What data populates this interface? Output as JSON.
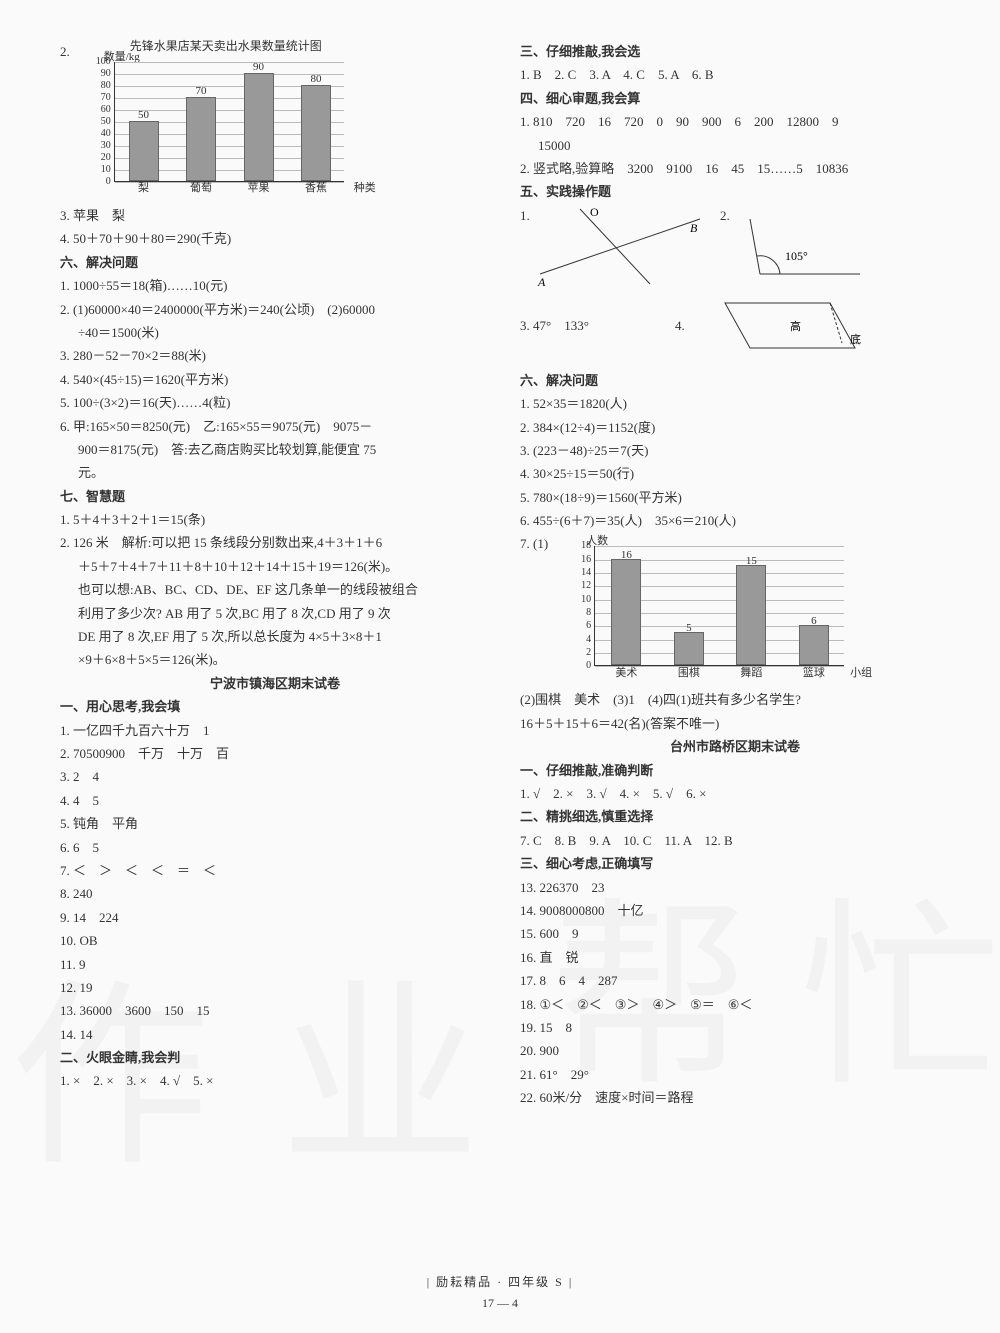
{
  "left": {
    "chart1": {
      "prefix": "2.",
      "title": "先锋水果店某天卖出水果数量统计图",
      "ylabel": "数量/kg",
      "xlabel": "种类",
      "ymax": 100,
      "ystep": 10,
      "categories": [
        "梨",
        "葡萄",
        "苹果",
        "香蕉"
      ],
      "values": [
        50,
        70,
        90,
        80
      ],
      "bar_color": "#999999",
      "grid_color": "#bbbbbb"
    },
    "l3": "3. 苹果　梨",
    "l4": "4. 50＋70＋90＋80＝290(千克)",
    "h6": "六、解决问题",
    "q6_1": "1. 1000÷55＝18(箱)……10(元)",
    "q6_2a": "2. (1)60000×40＝2400000(平方米)＝240(公顷)　(2)60000",
    "q6_2b": "÷40＝1500(米)",
    "q6_3": "3. 280－52－70×2＝88(米)",
    "q6_4": "4. 540×(45÷15)＝1620(平方米)",
    "q6_5": "5. 100÷(3×2)＝16(天)……4(粒)",
    "q6_6a": "6. 甲:165×50＝8250(元)　乙:165×55＝9075(元)　9075－",
    "q6_6b": "900＝8175(元)　答:去乙商店购买比较划算,能便宜 75",
    "q6_6c": "元。",
    "h7": "七、智慧题",
    "q7_1": "1. 5＋4＋3＋2＋1＝15(条)",
    "q7_2a": "2. 126 米　解析:可以把 15 条线段分别数出来,4＋3＋1＋6",
    "q7_2b": "＋5＋7＋4＋7＋11＋8＋10＋12＋14＋15＋19＝126(米)。",
    "q7_2c": "也可以想:AB、BC、CD、DE、EF 这几条单一的线段被组合",
    "q7_2d": "利用了多少次? AB 用了 5 次,BC 用了 8 次,CD 用了 9 次",
    "q7_2e": "DE 用了 8 次,EF 用了 5 次,所以总长度为 4×5＋3×8＋1",
    "q7_2f": "×9＋6×8＋5×5＝126(米)。",
    "title1": "宁波市镇海区期末试卷",
    "s1h": "一、用心思考,我会填",
    "s1_1": "1. 一亿四千九百六十万　1",
    "s1_2": "2. 70500900　千万　十万　百",
    "s1_3": "3. 2　4",
    "s1_4": "4. 4　5",
    "s1_5": "5. 钝角　平角",
    "s1_6": "6. 6　5",
    "s1_7": "7. ＜　＞　＜　＜　＝　＜",
    "s1_8": "8. 240",
    "s1_9": "9. 14　224",
    "s1_10": "10. OB",
    "s1_11": "11. 9",
    "s1_12": "12. 19",
    "s1_13": "13. 36000　3600　150　15",
    "s1_14": "14. 14",
    "s2h": "二、火眼金睛,我会判",
    "s2_1": "1. ×　2. ×　3. ×　4. √　5. ×"
  },
  "right": {
    "s3h": "三、仔细推敲,我会选",
    "s3_1": "1. B　2. C　3. A　4. C　5. A　6. B",
    "s4h": "四、细心审题,我会算",
    "s4_1a": "1. 810　720　16　720　0　90　900　6　200　12800　9",
    "s4_1b": "15000",
    "s4_2": "2. 竖式略,验算略　3200　9100　16　45　15……5　10836",
    "s5h": "五、实践操作题",
    "s5_1lab": "1.",
    "s5_2lab": "2.",
    "d1_O": "O",
    "d1_B": "B",
    "d1_A": "A",
    "d2_ang": "105°",
    "s5_3": "3. 47°　133°",
    "s5_4lab": "4.",
    "d4_gao": "高",
    "d4_di": "底",
    "s6h": "六、解决问题",
    "s6_1": "1. 52×35＝1820(人)",
    "s6_2": "2. 384×(12÷4)＝1152(度)",
    "s6_3": "3. (223－48)÷25＝7(天)",
    "s6_4": "4. 30×25÷15＝50(行)",
    "s6_5": "5. 780×(18÷9)＝1560(平方米)",
    "s6_6": "6. 455÷(6＋7)＝35(人)　35×6＝210(人)",
    "s6_7pre": "7. (1)",
    "chart2": {
      "ylabel": "人数",
      "xlabel": "小组",
      "ymax": 18,
      "ystep": 2,
      "categories": [
        "美术",
        "围棋",
        "舞蹈",
        "篮球"
      ],
      "values": [
        16,
        5,
        15,
        6
      ],
      "bar_color": "#999999",
      "grid_color": "#bbbbbb"
    },
    "s6_7b": "(2)围棋　美术　(3)1　(4)四(1)班共有多少名学生?",
    "s6_7c": "16＋5＋15＋6＝42(名)(答案不唯一)",
    "title2": "台州市路桥区期末试卷",
    "t1h": "一、仔细推敲,准确判断",
    "t1_1": "1. √　2. ×　3. √　4. ×　5. √　6. ×",
    "t2h": "二、精挑细选,慎重选择",
    "t2_1": "7. C　8. B　9. A　10. C　11. A　12. B",
    "t3h": "三、细心考虑,正确填写",
    "t3_13": "13. 226370　23",
    "t3_14": "14. 9008000800　十亿",
    "t3_15": "15. 600　9",
    "t3_16": "16. 直　锐",
    "t3_17": "17. 8　6　4　287",
    "t3_18": "18. ①＜　②＜　③＞　④＞　⑤＝　⑥＜",
    "t3_19": "19. 15　8",
    "t3_20": "20. 900",
    "t3_21": "21. 61°　29°",
    "t3_22": "22. 60米/分　速度×时间＝路程"
  },
  "footer": {
    "line1": "| 励耘精品 · 四年级 S |",
    "line2": "17 — 4"
  }
}
